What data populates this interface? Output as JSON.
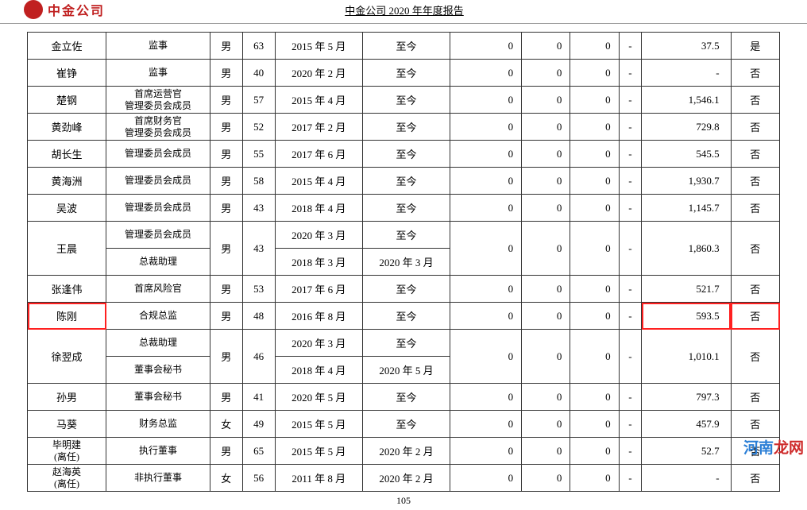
{
  "header": {
    "company_logo_text": "中金公司",
    "report_title": "中金公司 2020 年年度报告"
  },
  "col_widths": [
    "c-name",
    "c-title",
    "c-gender",
    "c-age",
    "c-date1",
    "c-date2",
    "c-n1",
    "c-n2",
    "c-n3",
    "c-n4",
    "c-val",
    "c-flag"
  ],
  "highlight_rows": [
    9
  ],
  "highlight_cols": {
    "9": [
      0,
      10,
      11
    ]
  },
  "rows": [
    {
      "cells": [
        "金立佐",
        "监事",
        "男",
        "63",
        "2015 年 5 月",
        "至今",
        "0",
        "0",
        "0",
        "-",
        "37.5",
        "是"
      ]
    },
    {
      "cells": [
        "崔铮",
        "监事",
        "男",
        "40",
        "2020 年 2 月",
        "至今",
        "0",
        "0",
        "0",
        "-",
        "-",
        "否"
      ]
    },
    {
      "cells": [
        "楚钢",
        "首席运营官\n管理委员会成员",
        "男",
        "57",
        "2015 年 4 月",
        "至今",
        "0",
        "0",
        "0",
        "-",
        "1,546.1",
        "否"
      ]
    },
    {
      "cells": [
        "黄劲峰",
        "首席财务官\n管理委员会成员",
        "男",
        "52",
        "2017 年 2 月",
        "至今",
        "0",
        "0",
        "0",
        "-",
        "729.8",
        "否"
      ]
    },
    {
      "cells": [
        "胡长生",
        "管理委员会成员",
        "男",
        "55",
        "2017 年 6 月",
        "至今",
        "0",
        "0",
        "0",
        "-",
        "545.5",
        "否"
      ]
    },
    {
      "cells": [
        "黄海洲",
        "管理委员会成员",
        "男",
        "58",
        "2015 年 4 月",
        "至今",
        "0",
        "0",
        "0",
        "-",
        "1,930.7",
        "否"
      ]
    },
    {
      "cells": [
        "吴波",
        "管理委员会成员",
        "男",
        "43",
        "2018 年 4 月",
        "至今",
        "0",
        "0",
        "0",
        "-",
        "1,145.7",
        "否"
      ]
    },
    {
      "name": "王晨",
      "span": 2,
      "title1": "管理委员会成员",
      "date1a": "2020 年 3 月",
      "date2a": "至今",
      "title2": "总裁助理",
      "date1b": "2018 年 3 月",
      "date2b": "2020 年 3 月",
      "gender": "男",
      "age": "43",
      "n1": "0",
      "n2": "0",
      "n3": "0",
      "n4": "-",
      "val": "1,860.3",
      "flag": "否"
    },
    {
      "cells": [
        "张逢伟",
        "首席风险官",
        "男",
        "53",
        "2017 年 6 月",
        "至今",
        "0",
        "0",
        "0",
        "-",
        "521.7",
        "否"
      ]
    },
    {
      "cells": [
        "陈刚",
        "合规总监",
        "男",
        "48",
        "2016 年 8 月",
        "至今",
        "0",
        "0",
        "0",
        "-",
        "593.5",
        "否"
      ]
    },
    {
      "name": "徐翌成",
      "span": 2,
      "title1": "总裁助理",
      "date1a": "2020 年 3 月",
      "date2a": "至今",
      "title2": "董事会秘书",
      "date1b": "2018 年 4 月",
      "date2b": "2020 年 5 月",
      "gender": "男",
      "age": "46",
      "n1": "0",
      "n2": "0",
      "n3": "0",
      "n4": "-",
      "val": "1,010.1",
      "flag": "否"
    },
    {
      "cells": [
        "孙男",
        "董事会秘书",
        "男",
        "41",
        "2020 年 5 月",
        "至今",
        "0",
        "0",
        "0",
        "-",
        "797.3",
        "否"
      ]
    },
    {
      "cells": [
        "马葵",
        "财务总监",
        "女",
        "49",
        "2015 年 5 月",
        "至今",
        "0",
        "0",
        "0",
        "-",
        "457.9",
        "否"
      ]
    },
    {
      "cells": [
        "毕明建\n(离任)",
        "执行董事",
        "男",
        "65",
        "2015 年 5 月",
        "2020 年 2 月",
        "0",
        "0",
        "0",
        "-",
        "52.7",
        "否"
      ]
    },
    {
      "cells": [
        "赵海英\n(离任)",
        "非执行董事",
        "女",
        "56",
        "2011 年 8 月",
        "2020 年 2 月",
        "0",
        "0",
        "0",
        "-",
        "-",
        "否"
      ]
    }
  ],
  "page_number": "105",
  "watermark": {
    "blue": "河南",
    "red": "龙网"
  }
}
